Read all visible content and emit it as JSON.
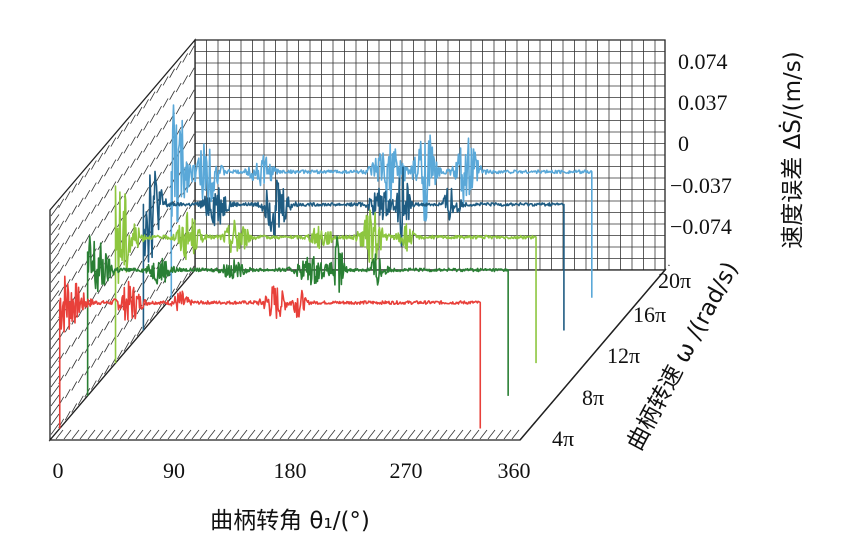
{
  "chart_data": {
    "type": "line",
    "subtype": "3d-waterfall",
    "x": {
      "label": "曲柄转角 θ₁/(°)",
      "ticks": [
        "0",
        "90",
        "180",
        "270",
        "360"
      ],
      "range": [
        0,
        360
      ]
    },
    "z": {
      "label": "曲柄转速 ω /(rad/s)",
      "ticks": [
        "4π",
        "8π",
        "12π",
        "16π",
        "20π"
      ]
    },
    "y": {
      "label": "速度误差 ΔṠ/(m/s)",
      "ticks": [
        "0.074",
        "0.037",
        "0",
        "−0.037",
        "−0.074"
      ],
      "range": [
        -0.074,
        0.074
      ]
    },
    "series": [
      {
        "omega": "4π",
        "color": "#e8403a",
        "peak": 0.03,
        "bursts": [
          [
            3,
            0.03,
            10
          ],
          [
            58,
            0.018,
            6
          ],
          [
            100,
            0.01,
            4
          ],
          [
            178,
            0.016,
            6
          ],
          [
            198,
            -0.014,
            3
          ]
        ]
      },
      {
        "omega": "8π",
        "color": "#2a7f34",
        "peak": 0.036,
        "bursts": [
          [
            3,
            0.036,
            9
          ],
          [
            60,
            0.012,
            6
          ],
          [
            120,
            0.008,
            6
          ],
          [
            185,
            0.012,
            8
          ],
          [
            207,
            -0.03,
            3
          ],
          [
            240,
            -0.016,
            4
          ]
        ]
      },
      {
        "omega": "12π",
        "color": "#8dc63f",
        "peak": 0.052,
        "bursts": [
          [
            3,
            0.052,
            8
          ],
          [
            60,
            0.022,
            6
          ],
          [
            100,
            -0.018,
            6
          ],
          [
            170,
            0.01,
            6
          ],
          [
            212,
            0.024,
            6
          ],
          [
            240,
            0.012,
            4
          ]
        ]
      },
      {
        "omega": "16π",
        "color": "#1f5c82",
        "peak": 0.058,
        "bursts": [
          [
            3,
            0.058,
            7
          ],
          [
            60,
            0.02,
            6
          ],
          [
            110,
            -0.03,
            6
          ],
          [
            196,
            0.014,
            6
          ],
          [
            215,
            -0.04,
            3
          ],
          [
            255,
            0.02,
            4
          ]
        ]
      },
      {
        "omega": "20π",
        "color": "#5aa8d8",
        "peak": 0.074,
        "bursts": [
          [
            3,
            0.074,
            6
          ],
          [
            30,
            0.03,
            6
          ],
          [
            75,
            0.016,
            6
          ],
          [
            180,
            0.026,
            8
          ],
          [
            210,
            0.046,
            5
          ],
          [
            245,
            0.032,
            6
          ]
        ]
      }
    ]
  }
}
